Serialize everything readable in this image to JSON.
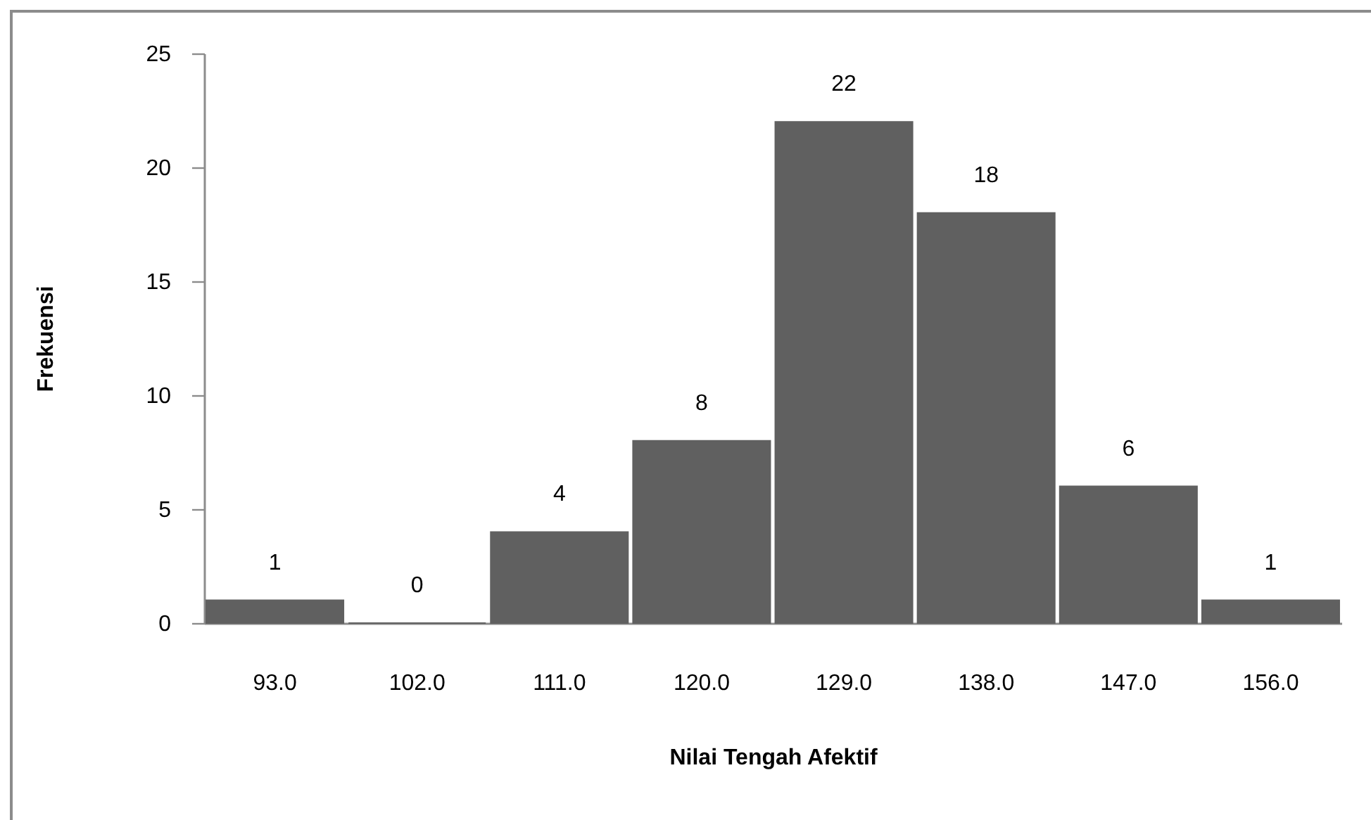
{
  "chart_data": {
    "type": "bar",
    "xlabel": "Nilai Tengah Afektif",
    "ylabel": "Frekuensi",
    "categories": [
      "93.0",
      "102.0",
      "111.0",
      "120.0",
      "129.0",
      "138.0",
      "147.0",
      "156.0"
    ],
    "values": [
      1,
      0,
      4,
      8,
      22,
      18,
      6,
      1
    ],
    "color": "#606060",
    "ylim": [
      0,
      25
    ],
    "yticks": [
      0,
      5,
      10,
      15,
      20,
      25
    ],
    "data_labels": true
  }
}
